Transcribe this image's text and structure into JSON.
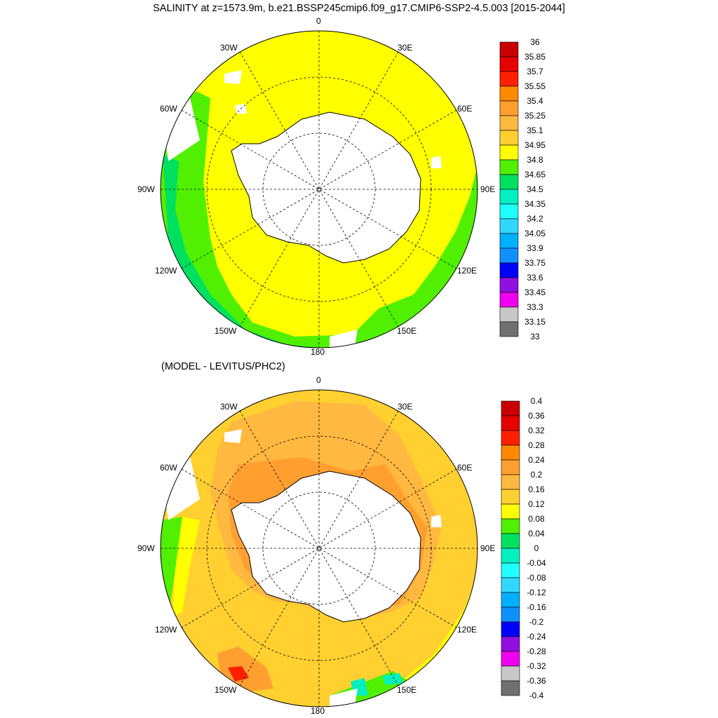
{
  "title": "SALINITY at z=1573.9m, b.e21.BSSP245cmip6.f09_g17.CMIP6-SSP2-4.5.003 [2015-2044]",
  "subtitle": "(MODEL - LEVITUS/PHC2)",
  "longitude_labels": [
    "0",
    "30E",
    "60E",
    "90E",
    "120E",
    "150E",
    "180",
    "150W",
    "120W",
    "90W",
    "60W",
    "30W"
  ],
  "colors": {
    "land": "#ffffff",
    "coast": "#000000",
    "grid": "#000000"
  },
  "chart_data": [
    {
      "type": "heatmap",
      "projection": "south-polar-stereographic",
      "variable": "SALINITY",
      "depth": "z=1573.9m",
      "colorbar": {
        "labels": [
          "36",
          "35.85",
          "35.7",
          "35.55",
          "35.4",
          "35.25",
          "35.1",
          "34.95",
          "34.8",
          "34.65",
          "34.5",
          "34.35",
          "34.2",
          "34.05",
          "33.9",
          "33.75",
          "33.6",
          "33.45",
          "33.3",
          "33.15",
          "33"
        ],
        "colors": [
          "#c80000",
          "#e60000",
          "#ff2000",
          "#ff8a00",
          "#ff9f30",
          "#ffb840",
          "#ffd030",
          "#ffff00",
          "#50f000",
          "#00e060",
          "#00f0c0",
          "#20ffff",
          "#30d8ff",
          "#00b0ff",
          "#1090ff",
          "#0000ff",
          "#9010e0",
          "#f000f0",
          "#c8c8c8",
          "#707070"
        ]
      },
      "dominant_range": [
        "34.8",
        "34.95"
      ]
    },
    {
      "type": "heatmap",
      "projection": "south-polar-stereographic",
      "variable": "(MODEL - LEVITUS/PHC2)",
      "colorbar": {
        "labels": [
          "0.4",
          "0.36",
          "0.32",
          "0.28",
          "0.24",
          "0.2",
          "0.16",
          "0.12",
          "0.08",
          "0.04",
          "0",
          "-0.04",
          "-0.08",
          "-0.12",
          "-0.16",
          "-0.2",
          "-0.24",
          "-0.28",
          "-0.32",
          "-0.36",
          "-0.4"
        ],
        "colors": [
          "#c80000",
          "#e60000",
          "#ff2000",
          "#ff8a00",
          "#ff9f30",
          "#ffb840",
          "#ffd030",
          "#ffff00",
          "#50f000",
          "#00e060",
          "#00f0c0",
          "#20ffff",
          "#30d8ff",
          "#00b0ff",
          "#1090ff",
          "#0000ff",
          "#9010e0",
          "#f000f0",
          "#c8c8c8",
          "#707070"
        ]
      },
      "dominant_range": [
        "0.12",
        "0.16"
      ]
    }
  ]
}
